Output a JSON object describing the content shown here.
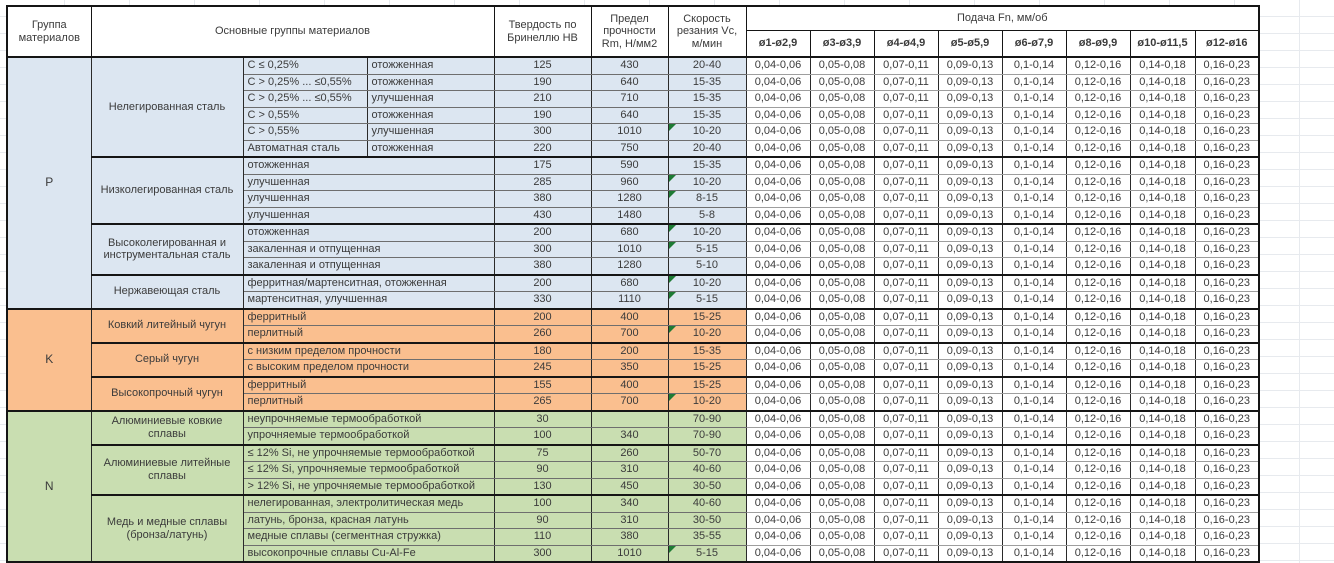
{
  "header": {
    "group": "Группа материалов",
    "materials": "Основные группы материалов",
    "hardness": "Твердость по Бринеллю HB",
    "strength": "Предел прочности Rm, Н/мм2",
    "speed": "Скорость резания Vc, м/мин",
    "feed_title": "Подача Fn, мм/об",
    "feed_cols": [
      "ø1-ø2,9",
      "ø3-ø3,9",
      "ø4-ø4,9",
      "ø5-ø5,9",
      "ø6-ø7,9",
      "ø8-ø9,9",
      "ø10-ø11,5",
      "ø12-ø16"
    ]
  },
  "feed_values": [
    "0,04-0,06",
    "0,05-0,08",
    "0,07-0,11",
    "0,09-0,13",
    "0,1-0,14",
    "0,12-0,16",
    "0,14-0,18",
    "0,16-0,23"
  ],
  "colors": {
    "p": "#dce6f1",
    "k": "#fabf8f",
    "n": "#c9deb1",
    "marker": "#1e7b34"
  },
  "groups": [
    {
      "code": "P",
      "color_key": "p",
      "subgroups": [
        {
          "name": "Нелегированная сталь",
          "rows": [
            {
              "d1": "C ≤ 0,25%",
              "d2": "отожженная",
              "hb": "125",
              "rm": "430",
              "vc": "20-40",
              "mark": false
            },
            {
              "d1": "C > 0,25% ... ≤0,55%",
              "d2": "отожженная",
              "hb": "190",
              "rm": "640",
              "vc": "15-35",
              "mark": false
            },
            {
              "d1": "C > 0,25% ... ≤0,55%",
              "d2": "улучшенная",
              "hb": "210",
              "rm": "710",
              "vc": "15-35",
              "mark": false
            },
            {
              "d1": "C > 0,55%",
              "d2": "отожженная",
              "hb": "190",
              "rm": "640",
              "vc": "15-35",
              "mark": false
            },
            {
              "d1": "C > 0,55%",
              "d2": "улучшенная",
              "hb": "300",
              "rm": "1010",
              "vc": "10-20",
              "mark": true
            },
            {
              "d1": "Автоматная сталь",
              "d2": "отожженная",
              "hb": "220",
              "rm": "750",
              "vc": "20-40",
              "mark": false
            }
          ]
        },
        {
          "name": "Низколегированная сталь",
          "rows": [
            {
              "d1": "отожженная",
              "d2": null,
              "hb": "175",
              "rm": "590",
              "vc": "15-35",
              "mark": false
            },
            {
              "d1": "улучшенная",
              "d2": null,
              "hb": "285",
              "rm": "960",
              "vc": "10-20",
              "mark": true
            },
            {
              "d1": "улучшенная",
              "d2": null,
              "hb": "380",
              "rm": "1280",
              "vc": "8-15",
              "mark": true
            },
            {
              "d1": "улучшенная",
              "d2": null,
              "hb": "430",
              "rm": "1480",
              "vc": "5-8",
              "mark": false
            }
          ]
        },
        {
          "name": "Высоколегированная и инструментальная сталь",
          "rows": [
            {
              "d1": "отожженная",
              "d2": null,
              "hb": "200",
              "rm": "680",
              "vc": "10-20",
              "mark": true
            },
            {
              "d1": "закаленная и отпущенная",
              "d2": null,
              "hb": "300",
              "rm": "1010",
              "vc": "5-15",
              "mark": true
            },
            {
              "d1": "закаленная и отпущенная",
              "d2": null,
              "hb": "380",
              "rm": "1280",
              "vc": "5-10",
              "mark": false
            }
          ]
        },
        {
          "name": "Нержавеющая сталь",
          "rows": [
            {
              "d1": "ферритная/мартенситная, отожженная",
              "d2": null,
              "hb": "200",
              "rm": "680",
              "vc": "10-20",
              "mark": true
            },
            {
              "d1": "мартенситная, улучшенная",
              "d2": null,
              "hb": "330",
              "rm": "1110",
              "vc": "5-15",
              "mark": true
            }
          ]
        }
      ]
    },
    {
      "code": "K",
      "color_key": "k",
      "subgroups": [
        {
          "name": "Ковкий литейный чугун",
          "rows": [
            {
              "d1": "ферритный",
              "d2": null,
              "hb": "200",
              "rm": "400",
              "vc": "15-25",
              "mark": false
            },
            {
              "d1": "перлитный",
              "d2": null,
              "hb": "260",
              "rm": "700",
              "vc": "10-20",
              "mark": true
            }
          ]
        },
        {
          "name": "Серый чугун",
          "rows": [
            {
              "d1": "с низким пределом прочности",
              "d2": null,
              "hb": "180",
              "rm": "200",
              "vc": "15-35",
              "mark": false
            },
            {
              "d1": "с высоким пределом прочности",
              "d2": null,
              "hb": "245",
              "rm": "350",
              "vc": "15-25",
              "mark": false
            }
          ]
        },
        {
          "name": "Высокопрочный чугун",
          "rows": [
            {
              "d1": "ферритный",
              "d2": null,
              "hb": "155",
              "rm": "400",
              "vc": "15-25",
              "mark": false
            },
            {
              "d1": "перлитный",
              "d2": null,
              "hb": "265",
              "rm": "700",
              "vc": "10-20",
              "mark": true
            }
          ]
        }
      ]
    },
    {
      "code": "N",
      "color_key": "n",
      "subgroups": [
        {
          "name": "Алюминиевые ковкие сплавы",
          "rows": [
            {
              "d1": "неупрочняемые термообработкой",
              "d2": null,
              "hb": "30",
              "rm": "",
              "vc": "70-90",
              "mark": false
            },
            {
              "d1": "упрочняемые термообработкой",
              "d2": null,
              "hb": "100",
              "rm": "340",
              "vc": "70-90",
              "mark": false
            }
          ]
        },
        {
          "name": "Алюминиевые литейные сплавы",
          "rows": [
            {
              "d1": "≤ 12% Si, не упрочняемые термообработкой",
              "d2": null,
              "hb": "75",
              "rm": "260",
              "vc": "50-70",
              "mark": false
            },
            {
              "d1": "≤ 12% Si, упрочняемые термообработкой",
              "d2": null,
              "hb": "90",
              "rm": "310",
              "vc": "40-60",
              "mark": false
            },
            {
              "d1": "> 12% Si, не упрочняемые термообработкой",
              "d2": null,
              "hb": "130",
              "rm": "450",
              "vc": "30-50",
              "mark": false
            }
          ]
        },
        {
          "name": "Медь и медные сплавы (бронза/латунь)",
          "rows": [
            {
              "d1": "нелегированная, электролитическая медь",
              "d2": null,
              "hb": "100",
              "rm": "340",
              "vc": "40-60",
              "mark": false
            },
            {
              "d1": "латунь, бронза, красная латунь",
              "d2": null,
              "hb": "90",
              "rm": "310",
              "vc": "30-50",
              "mark": false
            },
            {
              "d1": "медные сплавы (сегментная стружка)",
              "d2": null,
              "hb": "110",
              "rm": "380",
              "vc": "35-55",
              "mark": false
            },
            {
              "d1": "высокопрочные сплавы Cu-Al-Fe",
              "d2": null,
              "hb": "300",
              "rm": "1010",
              "vc": "5-15",
              "mark": true
            }
          ]
        }
      ]
    }
  ]
}
